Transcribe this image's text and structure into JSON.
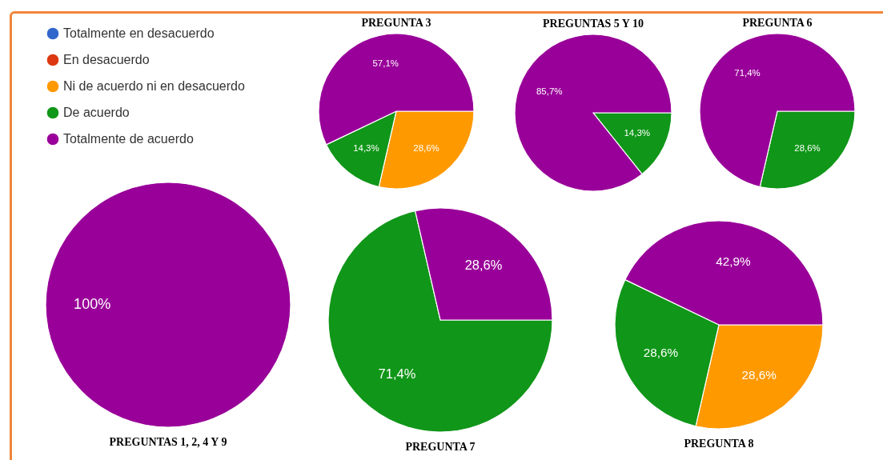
{
  "chart_data": [
    {
      "type": "pie",
      "title": "PREGUNTA 3",
      "categories": [
        null,
        null,
        null,
        null,
        null
      ],
      "values": [
        0,
        0,
        28.6,
        14.3,
        57.1
      ],
      "colors": [
        "#3366cc",
        "#dc3912",
        "#ff9900",
        "#109618",
        "#990099"
      ],
      "value_labels": [
        null,
        null,
        "28,6%",
        "14,3%",
        "57,1%"
      ]
    },
    {
      "type": "pie",
      "title": "PREGUNTAS 5 Y  10",
      "categories": [
        null,
        null,
        null,
        null,
        null
      ],
      "values": [
        0,
        0,
        0,
        14.3,
        85.7
      ],
      "colors": [
        "#3366cc",
        "#dc3912",
        "#ff9900",
        "#109618",
        "#990099"
      ],
      "value_labels": [
        null,
        null,
        null,
        "14,3%",
        "85,7%"
      ]
    },
    {
      "type": "pie",
      "title": "PREGUNTA 6",
      "categories": [
        null,
        null,
        null,
        null,
        null
      ],
      "values": [
        0,
        0,
        0,
        28.6,
        71.4
      ],
      "colors": [
        "#3366cc",
        "#dc3912",
        "#ff9900",
        "#109618",
        "#990099"
      ],
      "value_labels": [
        null,
        null,
        null,
        "28,6%",
        "71,4%"
      ]
    },
    {
      "type": "pie",
      "title": "PREGUNTAS 1, 2, 4 Y  9",
      "categories": [
        "Totalmente en desacuerdo",
        "En desacuerdo",
        "Ni de acuerdo ni en desacuerdo",
        "De acuerdo",
        "Totalmente de acuerdo"
      ],
      "values": [
        0,
        0,
        0,
        0,
        100
      ],
      "colors": [
        "#3366cc",
        "#dc3912",
        "#ff9900",
        "#109618",
        "#990099"
      ],
      "value_labels": [
        null,
        null,
        null,
        null,
        "100%"
      ],
      "legend": "top left"
    },
    {
      "type": "pie",
      "title": "PREGUNTA 7",
      "categories": [
        null,
        null,
        null,
        null,
        null
      ],
      "values": [
        0,
        0,
        0,
        71.4,
        28.6
      ],
      "colors": [
        "#3366cc",
        "#dc3912",
        "#ff9900",
        "#109618",
        "#990099"
      ],
      "value_labels": [
        null,
        null,
        null,
        "71,4%",
        "28,6%"
      ]
    },
    {
      "type": "pie",
      "title": "PREGUNTA 8",
      "categories": [
        null,
        null,
        null,
        null,
        null
      ],
      "values": [
        0,
        0,
        28.6,
        28.6,
        42.9
      ],
      "colors": [
        "#3366cc",
        "#dc3912",
        "#ff9900",
        "#109618",
        "#990099"
      ],
      "value_labels": [
        null,
        null,
        "28,6%",
        "28,6%",
        "42,9%"
      ]
    }
  ]
}
